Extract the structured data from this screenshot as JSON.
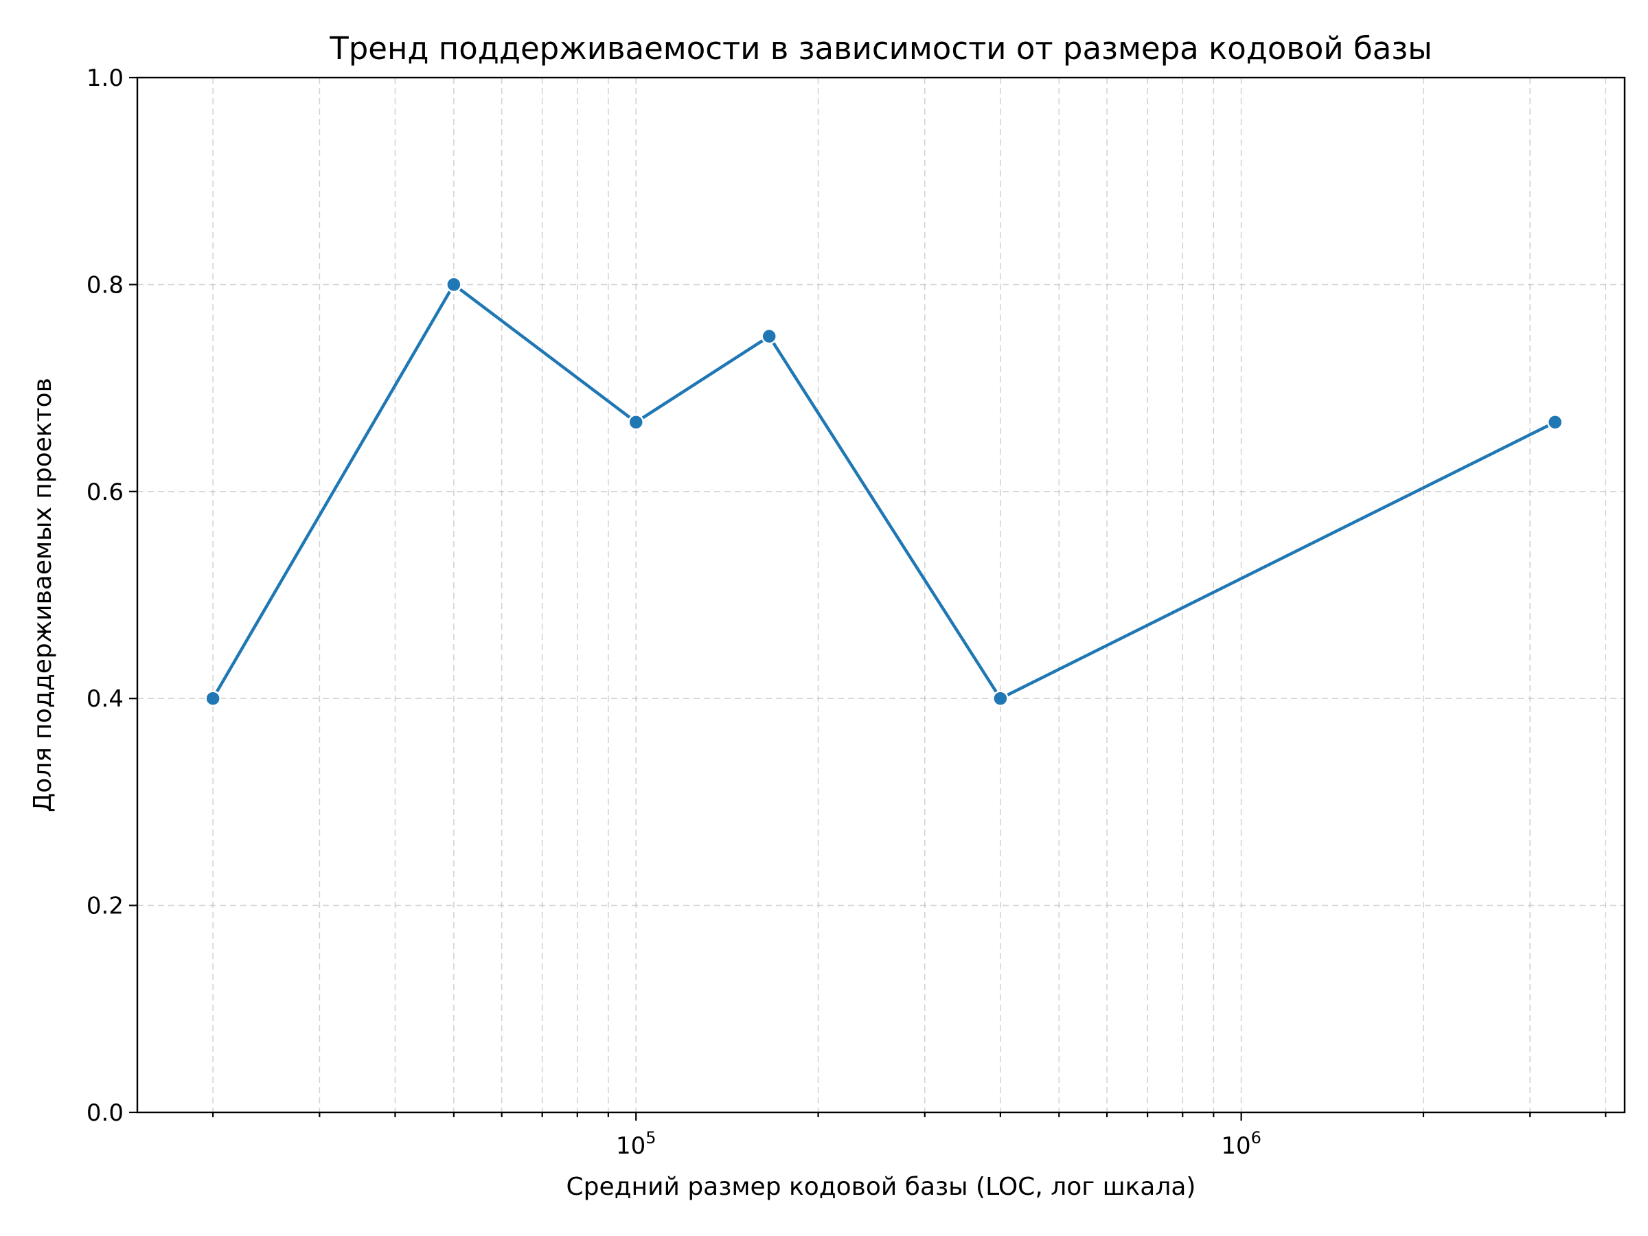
{
  "chart_data": {
    "type": "line",
    "title": "Тренд поддерживаемости в зависимости от размера кодовой базы",
    "xlabel": "Средний размер кодовой базы (LOC, лог шкала)",
    "ylabel": "Доля поддерживаемых проектов",
    "xscale": "log",
    "xlim": [
      15000,
      4300000
    ],
    "ylim": [
      0,
      1
    ],
    "grid": true,
    "x_major_ticks": [
      {
        "value": 100000,
        "base": "10",
        "exp": "5"
      },
      {
        "value": 1000000,
        "base": "10",
        "exp": "6"
      }
    ],
    "y_ticks": [
      {
        "value": 0.0,
        "label": "0.0"
      },
      {
        "value": 0.2,
        "label": "0.2"
      },
      {
        "value": 0.4,
        "label": "0.4"
      },
      {
        "value": 0.6,
        "label": "0.6"
      },
      {
        "value": 0.8,
        "label": "0.8"
      },
      {
        "value": 1.0,
        "label": "1.0"
      }
    ],
    "series": [
      {
        "color": "#1f77b4",
        "x": [
          20000,
          50000,
          100000,
          166000,
          400000,
          3300000
        ],
        "y": [
          0.4,
          0.8,
          0.667,
          0.75,
          0.4,
          0.667
        ]
      }
    ]
  }
}
